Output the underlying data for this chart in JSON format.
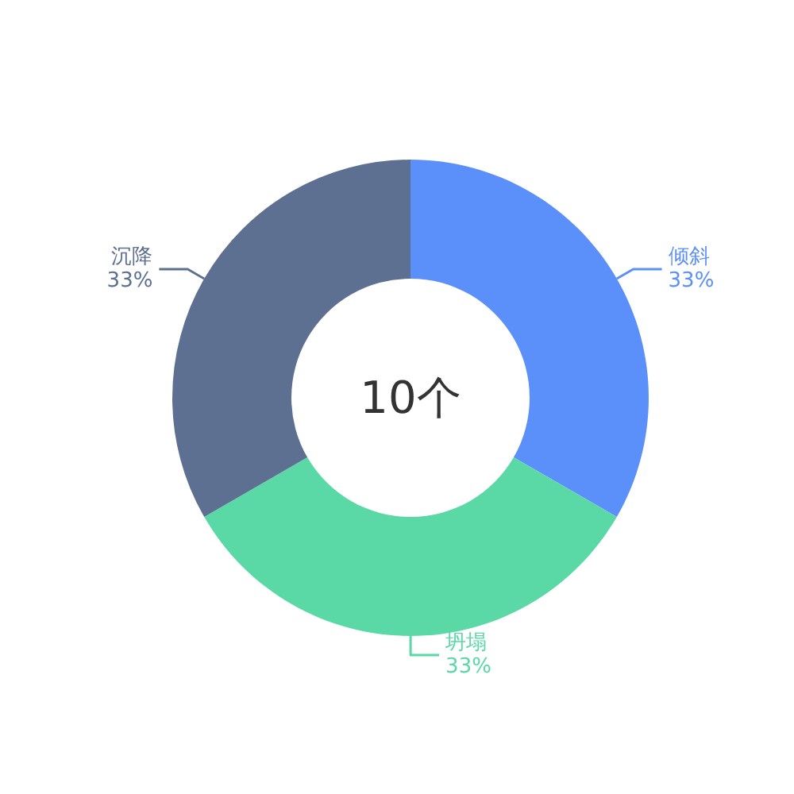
{
  "chart_data": {
    "type": "donut",
    "categories": [
      "倾斜",
      "坍塌",
      "沉降"
    ],
    "values": [
      33.33,
      33.33,
      33.34
    ],
    "colors": [
      "#5b8ff9",
      "#5ad8a6",
      "#5d7092"
    ],
    "value_labels": [
      "33%",
      "33%",
      "33%"
    ],
    "annotations": [
      "10个"
    ]
  }
}
